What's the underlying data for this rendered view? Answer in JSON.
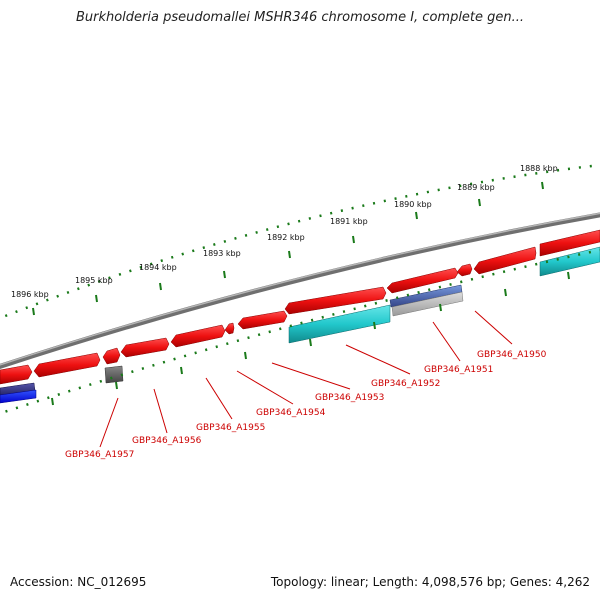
{
  "title": "Burkholderia pseudomallei MSHR346 chromosome I, complete gen...",
  "footer": {
    "accession": "Accession: NC_012695",
    "topology": "Topology: linear; Length: 4,098,576 bp; Genes: 4,262"
  },
  "scale_labels": [
    "1888 kbp",
    "1889 kbp",
    "1890 kbp",
    "1891 kbp",
    "1892 kbp",
    "1893 kbp",
    "1894 kbp",
    "1895 kbp",
    "1896 kbp"
  ],
  "gene_labels": [
    "GBP346_A1950",
    "GBP346_A1951",
    "GBP346_A1952",
    "GBP346_A1953",
    "GBP346_A1954",
    "GBP346_A1955",
    "GBP346_A1956",
    "GBP346_A1957"
  ],
  "colors": {
    "backbone": "#8a8a8a",
    "forward_cds": "#ee1111",
    "reverse_cds": "#22c8cc",
    "other_feature": "#4466aa",
    "pseudo_feature": "#555555",
    "ticks": "#1a7a1a",
    "labels": "#cc0000"
  }
}
